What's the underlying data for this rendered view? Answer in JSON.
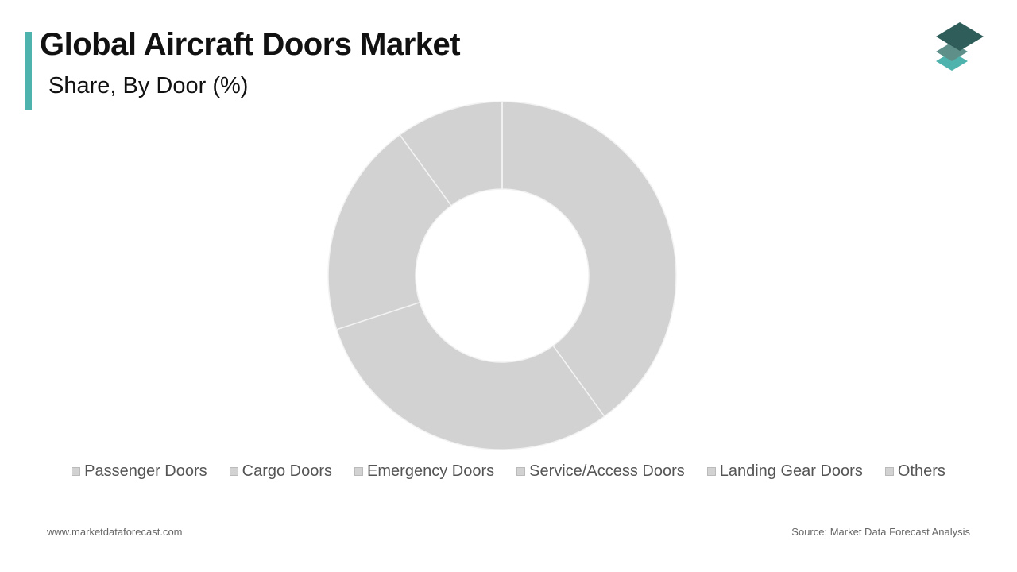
{
  "chart_data": {
    "type": "donut",
    "title": "Global Aircraft Doors Market",
    "subtitle": "Share, By Door (%)",
    "categories": [
      "Passenger Doors",
      "Cargo Doors",
      "Emergency Doors",
      "Service/Access Doors",
      "Landing Gear Doors",
      "Others"
    ],
    "values": [
      40,
      30,
      20,
      10,
      0,
      0
    ],
    "color": "#d3d2d3",
    "website": "www.marketdataforecast.com",
    "source": "Source: Market Data Forecast Analysis"
  }
}
